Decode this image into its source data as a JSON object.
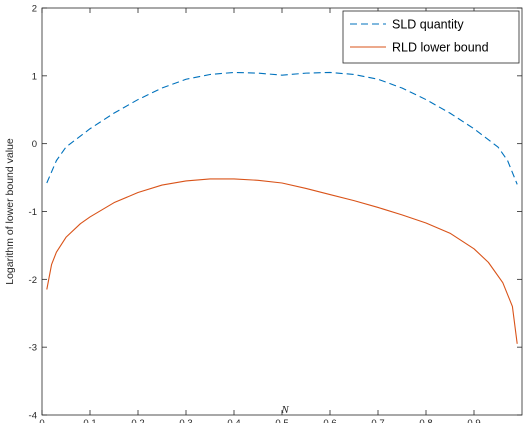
{
  "chart_data": {
    "type": "line",
    "xlabel": "N",
    "ylabel": "Logarithm of lower bound value",
    "xlim": [
      0,
      1
    ],
    "ylim": [
      -4,
      2
    ],
    "x_ticks": [
      "0",
      "0.1",
      "0.2",
      "0.3",
      "0.4",
      "0.5",
      "0.6",
      "0.7",
      "0.8",
      "0.9"
    ],
    "y_ticks": [
      "2",
      "1",
      "0",
      "-1",
      "-2",
      "-3",
      "-4"
    ],
    "grid": false,
    "legend_position": "top-right",
    "series": [
      {
        "name": "SLD quantity",
        "color": "#0072BD",
        "style": "dashed",
        "x": [
          0.01,
          0.03,
          0.05,
          0.1,
          0.15,
          0.2,
          0.25,
          0.3,
          0.35,
          0.4,
          0.45,
          0.5,
          0.55,
          0.6,
          0.65,
          0.7,
          0.75,
          0.8,
          0.85,
          0.9,
          0.95,
          0.97,
          0.99
        ],
        "y": [
          -0.58,
          -0.25,
          -0.05,
          0.22,
          0.45,
          0.65,
          0.82,
          0.95,
          1.02,
          1.05,
          1.04,
          1.01,
          1.04,
          1.05,
          1.02,
          0.95,
          0.82,
          0.65,
          0.45,
          0.22,
          -0.05,
          -0.25,
          -0.6
        ]
      },
      {
        "name": "RLD lower bound",
        "color": "#D95319",
        "style": "solid",
        "x": [
          0.01,
          0.02,
          0.03,
          0.05,
          0.08,
          0.1,
          0.15,
          0.2,
          0.25,
          0.3,
          0.35,
          0.4,
          0.45,
          0.5,
          0.55,
          0.6,
          0.65,
          0.7,
          0.75,
          0.8,
          0.85,
          0.9,
          0.93,
          0.96,
          0.98,
          0.99
        ],
        "y": [
          -2.15,
          -1.78,
          -1.6,
          -1.38,
          -1.18,
          -1.08,
          -0.87,
          -0.72,
          -0.61,
          -0.55,
          -0.52,
          -0.52,
          -0.54,
          -0.58,
          -0.66,
          -0.75,
          -0.84,
          -0.94,
          -1.05,
          -1.17,
          -1.32,
          -1.55,
          -1.75,
          -2.05,
          -2.4,
          -2.95
        ]
      }
    ]
  }
}
